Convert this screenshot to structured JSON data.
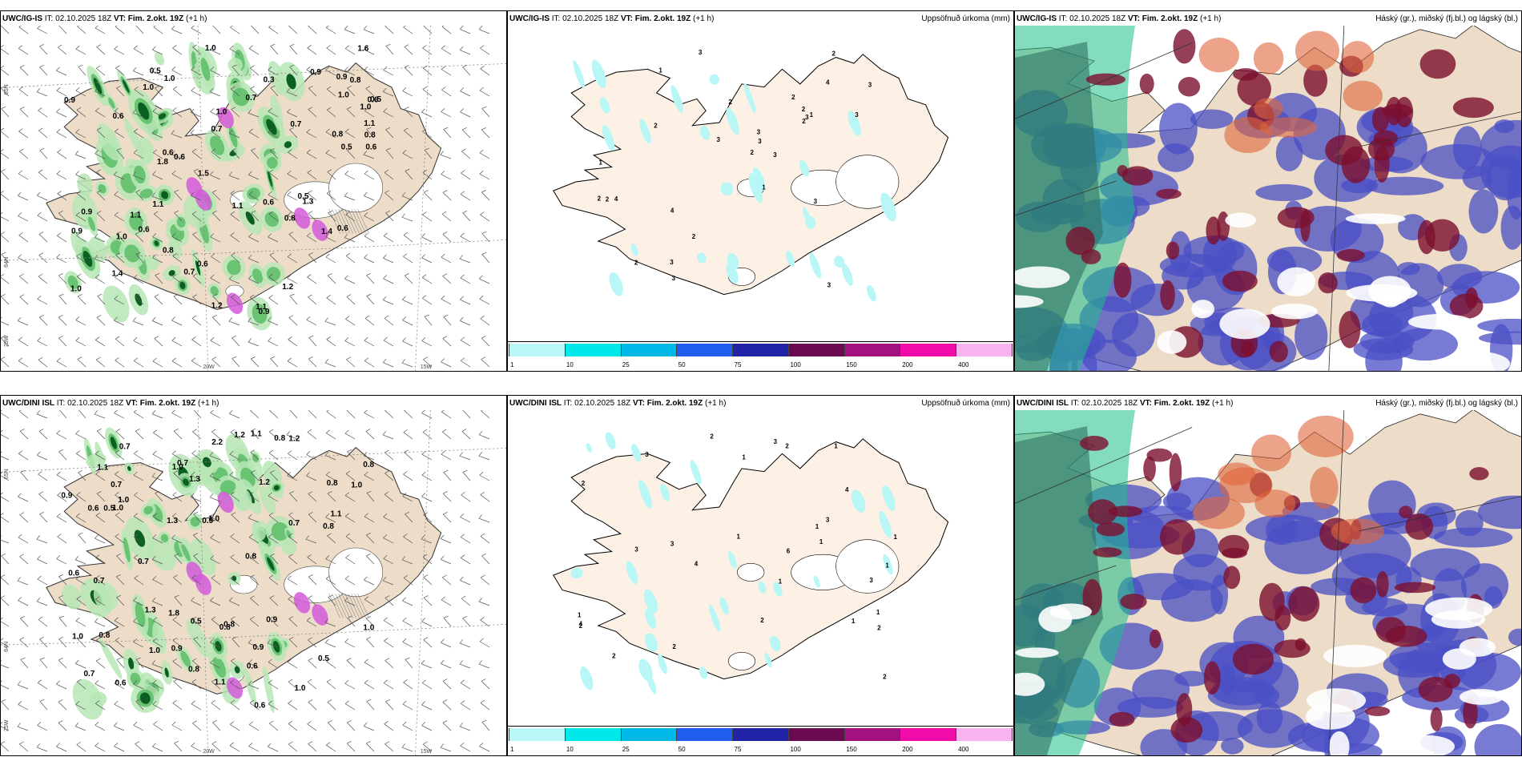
{
  "rows": [
    {
      "model": "UWC/IG-IS",
      "it_label": "IT:",
      "it_value": "02.10.2025 18Z",
      "vt_label": "VT:",
      "vt_value": "Fim. 2.okt. 19Z",
      "lead": "(+1 h)",
      "wind_panel": {
        "grid_labels": [
          "65N",
          "64N",
          "25W",
          "20W",
          "15W"
        ],
        "values": [
          "1.0",
          "1.2",
          "0.8",
          "0.6",
          "1.0",
          "1.2",
          "1.0",
          "1.4",
          "1.0",
          "1.1",
          "0.9",
          "0.5",
          "0.8",
          "0.6",
          "0.7",
          "1.0",
          "1.6",
          "0.9",
          "0.6",
          "1.1",
          "1.0",
          "0.6",
          "0.5",
          "1.1",
          "1.0",
          "0.3",
          "0.7",
          "0.8",
          "0.6",
          "0.5",
          "0.6",
          "0.9",
          "0.8",
          "1.1",
          "1.0",
          "0.8",
          "0.7",
          "0.5",
          "1.8",
          "0.6",
          "1.1",
          "0.9",
          "1.4",
          "0.9",
          "0.6",
          "1.3",
          "0.7",
          "0.6",
          "0.9",
          "1.5"
        ]
      },
      "precip_panel": {
        "title": "Uppsöfnuð úrkoma (mm)",
        "values": [
          "3",
          "3",
          "3",
          "3",
          "3",
          "2",
          "3",
          "3",
          "3",
          "4",
          "2",
          "2",
          "3",
          "3",
          "2",
          "1",
          "2",
          "4",
          "3",
          "2",
          "2",
          "4",
          "2",
          "2",
          "2",
          "2",
          "1",
          "3",
          "1",
          "1"
        ]
      },
      "cloud_panel": {
        "title": "Háský (gr.), miðský (fj.bl.) og lágský (bl.)"
      }
    },
    {
      "model": "UWC/DINI ISL",
      "it_label": "IT:",
      "it_value": "02.10.2025 18Z",
      "vt_label": "VT:",
      "vt_value": "Fim. 2.okt. 19Z",
      "lead": "(+1 h)",
      "wind_panel": {
        "grid_labels": [
          "65N",
          "64N",
          "25W",
          "20W",
          "15W"
        ],
        "values": [
          "0.7",
          "0.7",
          "2.2",
          "0.8",
          "1.0",
          "1.1",
          "1.0",
          "0.8",
          "0.9",
          "0.7",
          "1.0",
          "0.8",
          "1.2",
          "0.6",
          "1.1",
          "1.0",
          "0.8",
          "0.8",
          "1.3",
          "0.6",
          "0.9",
          "0.8",
          "0.5",
          "1.3",
          "0.7",
          "0.9",
          "0.5",
          "0.8",
          "1.0",
          "1.2",
          "1.1",
          "1.0",
          "0.8",
          "0.7",
          "0.7",
          "1.0",
          "0.6",
          "0.8",
          "1.3",
          "0.7",
          "0.6",
          "1.8",
          "0.5",
          "1.0",
          "1.1",
          "1.2",
          "0.9",
          "1.0",
          "0.6",
          "0.9"
        ]
      },
      "precip_panel": {
        "title": "Uppsöfnuð úrkoma (mm)",
        "values": [
          "2",
          "1",
          "4",
          "2",
          "3",
          "1",
          "2",
          "1",
          "1",
          "1",
          "2",
          "1",
          "1",
          "3",
          "3",
          "3",
          "4",
          "4",
          "2",
          "2",
          "2",
          "2",
          "2",
          "3",
          "1",
          "1",
          "3",
          "1",
          "6",
          "1"
        ]
      },
      "cloud_panel": {
        "title": "Háský (gr.), miðský (fj.bl.) og lágský (bl.)"
      }
    }
  ],
  "precip_legend": {
    "ticks": [
      "1",
      "10",
      "25",
      "50",
      "75",
      "100",
      "150",
      "200",
      "400"
    ],
    "colors": [
      "#b9f7f7",
      "#00e7ea",
      "#00b8e6",
      "#1f5cf0",
      "#2323a8",
      "#6b0a50",
      "#a1127f",
      "#ef0ca8",
      "#f7b4ee"
    ]
  },
  "colors": {
    "land": "#ecdcc8",
    "land_precip": "#fdf0e4",
    "sea": "#ffffff",
    "green_light": "#b7e6b5",
    "green_mid": "#5fbf6a",
    "green_dark": "#0c5f22",
    "magenta": "#d45ad9",
    "cloud_green": "#1fc08a",
    "cloud_blue": "#4a4fc4",
    "cloud_darkred": "#7c0f2e",
    "cloud_orange": "#e0653a"
  }
}
